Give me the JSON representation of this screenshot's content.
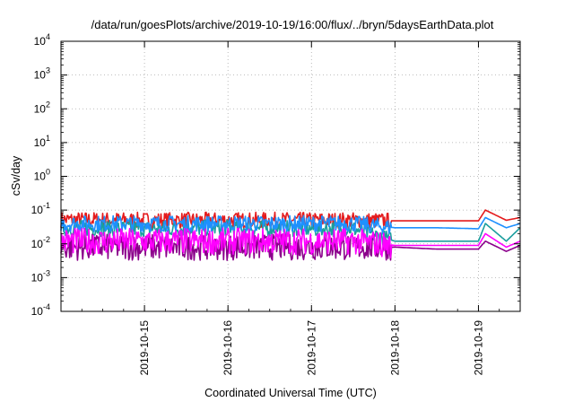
{
  "chart_data": {
    "type": "line",
    "title": "/data/run/goesPlots/archive/2019-10-19/16:00/flux/../bryn/5daysEarthData.plot",
    "xlabel": "Coordinated Universal Time (UTC)",
    "ylabel": "cSv/day",
    "yscale": "log",
    "ylim": [
      0.0001,
      10000
    ],
    "xlim": [
      "2019-10-14T00:00",
      "2019-10-19T12:00"
    ],
    "grid": true,
    "legend": "none",
    "y_ticks": [
      {
        "base": "10",
        "exp": "4"
      },
      {
        "base": "10",
        "exp": "3"
      },
      {
        "base": "10",
        "exp": "2"
      },
      {
        "base": "10",
        "exp": "1"
      },
      {
        "base": "10",
        "exp": "0"
      },
      {
        "base": "10",
        "exp": "-1"
      },
      {
        "base": "10",
        "exp": "-2"
      },
      {
        "base": "10",
        "exp": "-3"
      },
      {
        "base": "10",
        "exp": "-4"
      }
    ],
    "x_ticks": [
      "2019-10-15",
      "2019-10-16",
      "2019-10-17",
      "2019-10-18",
      "2019-10-19"
    ],
    "series": [
      {
        "color": "#e41a1c",
        "x": [
          "2019-10-14T00:00",
          "2019-10-15T00:00",
          "2019-10-16T00:00",
          "2019-10-17T00:00",
          "2019-10-17T12:00",
          "2019-10-18T00:00",
          "2019-10-18T12:00",
          "2019-10-19T00:00",
          "2019-10-19T02:00",
          "2019-10-19T08:00",
          "2019-10-19T12:00"
        ],
        "y": [
          0.052,
          0.05,
          0.05,
          0.05,
          0.05,
          0.048,
          0.048,
          0.048,
          0.1,
          0.05,
          0.06
        ]
      },
      {
        "color": "#1a9e9e",
        "x": [
          "2019-10-14T00:00",
          "2019-10-15T00:00",
          "2019-10-16T00:00",
          "2019-10-17T00:00",
          "2019-10-17T12:00",
          "2019-10-18T00:00",
          "2019-10-18T12:00",
          "2019-10-19T00:00",
          "2019-10-19T02:00",
          "2019-10-19T08:00",
          "2019-10-19T12:00"
        ],
        "y": [
          0.03,
          0.028,
          0.03,
          0.028,
          0.028,
          0.012,
          0.012,
          0.012,
          0.04,
          0.012,
          0.03
        ]
      },
      {
        "color": "#1e90ff",
        "x": [
          "2019-10-14T00:00",
          "2019-10-15T00:00",
          "2019-10-16T00:00",
          "2019-10-17T00:00",
          "2019-10-17T12:00",
          "2019-10-18T00:00",
          "2019-10-18T12:00",
          "2019-10-19T00:00",
          "2019-10-19T02:00",
          "2019-10-19T08:00",
          "2019-10-19T12:00"
        ],
        "y": [
          0.04,
          0.04,
          0.04,
          0.04,
          0.04,
          0.03,
          0.03,
          0.028,
          0.06,
          0.03,
          0.04
        ]
      },
      {
        "color": "#8b008b",
        "x": [
          "2019-10-14T00:00",
          "2019-10-15T00:00",
          "2019-10-16T00:00",
          "2019-10-17T00:00",
          "2019-10-17T12:00",
          "2019-10-18T00:00",
          "2019-10-18T12:00",
          "2019-10-19T00:00",
          "2019-10-19T02:00",
          "2019-10-19T08:00",
          "2019-10-19T12:00"
        ],
        "y": [
          0.008,
          0.008,
          0.008,
          0.008,
          0.008,
          0.008,
          0.007,
          0.007,
          0.012,
          0.006,
          0.009
        ]
      },
      {
        "color": "#ff00ff",
        "x": [
          "2019-10-14T00:00",
          "2019-10-15T00:00",
          "2019-10-16T00:00",
          "2019-10-17T00:00",
          "2019-10-17T12:00",
          "2019-10-18T00:00",
          "2019-10-18T12:00",
          "2019-10-19T00:00",
          "2019-10-19T02:00",
          "2019-10-19T08:00",
          "2019-10-19T12:00"
        ],
        "y": [
          0.012,
          0.012,
          0.012,
          0.012,
          0.012,
          0.009,
          0.009,
          0.009,
          0.02,
          0.008,
          0.012
        ]
      }
    ]
  }
}
